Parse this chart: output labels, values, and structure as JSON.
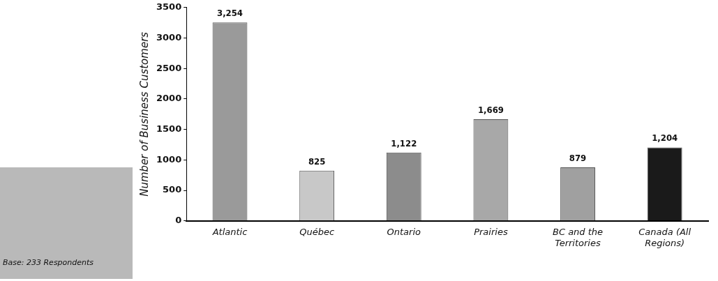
{
  "chart_data": {
    "type": "bar",
    "ylabel": "Number of Business Customers",
    "categories": [
      "Atlantic",
      "Québec",
      "Ontario",
      "Prairies",
      "BC and the Territories",
      "Canada (All Regions)"
    ],
    "values": [
      3254,
      825,
      1122,
      1669,
      879,
      1204
    ],
    "colors": [
      "#9a9a9a",
      "#c8c8c8",
      "#8c8c8c",
      "#a8a8a8",
      "#a0a0a0",
      "#1a1a1a"
    ],
    "value_labels": [
      "3,254",
      "825",
      "1,122",
      "1,669",
      "879",
      "1,204"
    ],
    "ylim": [
      0,
      3500
    ],
    "yticks": [
      0,
      500,
      1000,
      1500,
      2000,
      2500,
      3000,
      3500
    ],
    "grid": false,
    "legend": false,
    "annotations": [
      "Base: 233 Respondents"
    ]
  }
}
